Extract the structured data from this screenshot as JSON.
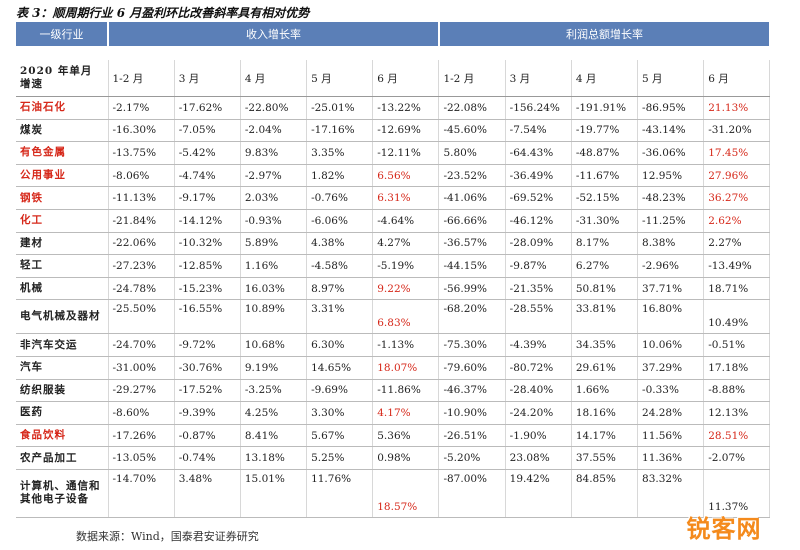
{
  "caption": "表 3：顺周期行业 6 月盈利环比改善斜率具有相对优势",
  "header": {
    "group0": "一级行业",
    "group1": "收入增长率",
    "group2": "利润总额增长率",
    "sub0": "2020 年单月增速",
    "months": [
      "1-2 月",
      "3 月",
      "4 月",
      "5 月",
      "6 月",
      "1-2 月",
      "3 月",
      "4 月",
      "5 月",
      "6 月"
    ]
  },
  "rows": [
    {
      "name": "石油石化",
      "name_red": true,
      "values": [
        "-2.17%",
        "-17.62%",
        "-22.80%",
        "-25.01%",
        "-13.22%",
        "-22.08%",
        "-156.24%",
        "-191.91%",
        "-86.95%",
        "21.13%"
      ],
      "red_cols": [
        9
      ]
    },
    {
      "name": "煤炭",
      "name_red": false,
      "values": [
        "-16.30%",
        "-7.05%",
        "-2.04%",
        "-17.16%",
        "-12.69%",
        "-45.60%",
        "-7.54%",
        "-19.77%",
        "-43.14%",
        "-31.20%"
      ],
      "red_cols": []
    },
    {
      "name": "有色金属",
      "name_red": true,
      "values": [
        "-13.75%",
        "-5.42%",
        "9.83%",
        "3.35%",
        "-12.11%",
        "5.80%",
        "-64.43%",
        "-48.87%",
        "-36.06%",
        "17.45%"
      ],
      "red_cols": [
        9
      ]
    },
    {
      "name": "公用事业",
      "name_red": true,
      "values": [
        "-8.06%",
        "-4.74%",
        "-2.97%",
        "1.82%",
        "6.56%",
        "-23.52%",
        "-36.49%",
        "-11.67%",
        "12.95%",
        "27.96%"
      ],
      "red_cols": [
        4,
        9
      ]
    },
    {
      "name": "钢铁",
      "name_red": true,
      "values": [
        "-11.13%",
        "-9.17%",
        "2.03%",
        "-0.76%",
        "6.31%",
        "-41.06%",
        "-69.52%",
        "-52.15%",
        "-48.23%",
        "36.27%"
      ],
      "red_cols": [
        4,
        9
      ]
    },
    {
      "name": "化工",
      "name_red": true,
      "values": [
        "-21.84%",
        "-14.12%",
        "-0.93%",
        "-6.06%",
        "-4.64%",
        "-66.66%",
        "-46.12%",
        "-31.30%",
        "-11.25%",
        "2.62%"
      ],
      "red_cols": [
        9
      ]
    },
    {
      "name": "建材",
      "name_red": false,
      "values": [
        "-22.06%",
        "-10.32%",
        "5.89%",
        "4.38%",
        "4.27%",
        "-36.57%",
        "-28.09%",
        "8.17%",
        "8.38%",
        "2.27%"
      ],
      "red_cols": []
    },
    {
      "name": "轻工",
      "name_red": false,
      "values": [
        "-27.23%",
        "-12.85%",
        "1.16%",
        "-4.58%",
        "-5.19%",
        "-44.15%",
        "-9.87%",
        "6.27%",
        "-2.96%",
        "-13.49%"
      ],
      "red_cols": []
    },
    {
      "name": "机械",
      "name_red": false,
      "values": [
        "-24.78%",
        "-15.23%",
        "16.03%",
        "8.97%",
        "9.22%",
        "-56.99%",
        "-21.35%",
        "50.81%",
        "37.71%",
        "18.71%"
      ],
      "red_cols": [
        4
      ]
    },
    {
      "name": "电气机械及器材",
      "name_red": false,
      "values": [
        "-25.50%",
        "-16.55%",
        "10.89%",
        "3.31%",
        "6.83%",
        "-68.20%",
        "-28.55%",
        "33.81%",
        "16.80%",
        "10.49%"
      ],
      "red_cols": [
        4
      ],
      "tall": true
    },
    {
      "name": "非汽车交运",
      "name_red": false,
      "values": [
        "-24.70%",
        "-9.72%",
        "10.68%",
        "6.30%",
        "-1.13%",
        "-75.30%",
        "-4.39%",
        "34.35%",
        "10.06%",
        "-0.51%"
      ],
      "red_cols": []
    },
    {
      "name": "汽车",
      "name_red": false,
      "values": [
        "-31.00%",
        "-30.76%",
        "9.19%",
        "14.65%",
        "18.07%",
        "-79.60%",
        "-80.72%",
        "29.61%",
        "37.29%",
        "17.18%"
      ],
      "red_cols": [
        4
      ]
    },
    {
      "name": "纺织服装",
      "name_red": false,
      "values": [
        "-29.27%",
        "-17.52%",
        "-3.25%",
        "-9.69%",
        "-11.86%",
        "-46.37%",
        "-28.40%",
        "1.66%",
        "-0.33%",
        "-8.88%"
      ],
      "red_cols": []
    },
    {
      "name": "医药",
      "name_red": false,
      "values": [
        "-8.60%",
        "-9.39%",
        "4.25%",
        "3.30%",
        "4.17%",
        "-10.90%",
        "-24.20%",
        "18.16%",
        "24.28%",
        "12.13%"
      ],
      "red_cols": [
        4
      ]
    },
    {
      "name": "食品饮料",
      "name_red": true,
      "values": [
        "-17.26%",
        "-0.87%",
        "8.41%",
        "5.67%",
        "5.36%",
        "-26.51%",
        "-1.90%",
        "14.17%",
        "11.56%",
        "28.51%"
      ],
      "red_cols": [
        9
      ]
    },
    {
      "name": "农产品加工",
      "name_red": false,
      "values": [
        "-13.05%",
        "-0.74%",
        "13.18%",
        "5.25%",
        "0.98%",
        "-5.20%",
        "23.08%",
        "37.55%",
        "11.36%",
        "-2.07%"
      ],
      "red_cols": []
    },
    {
      "name": "计算机、通信和其他电子设备",
      "name_red": false,
      "values": [
        "-14.70%",
        "3.48%",
        "15.01%",
        "11.76%",
        "18.57%",
        "-87.00%",
        "19.42%",
        "84.85%",
        "83.32%",
        "11.37%"
      ],
      "red_cols": [
        4
      ],
      "tall3": true
    }
  ],
  "footer": "数据来源：Wind，国泰君安证券研究",
  "watermark": "锐客网",
  "colors": {
    "header_bg": "#5b7fb7",
    "highlight": "#d6281a",
    "watermark": "#f48a1c"
  }
}
